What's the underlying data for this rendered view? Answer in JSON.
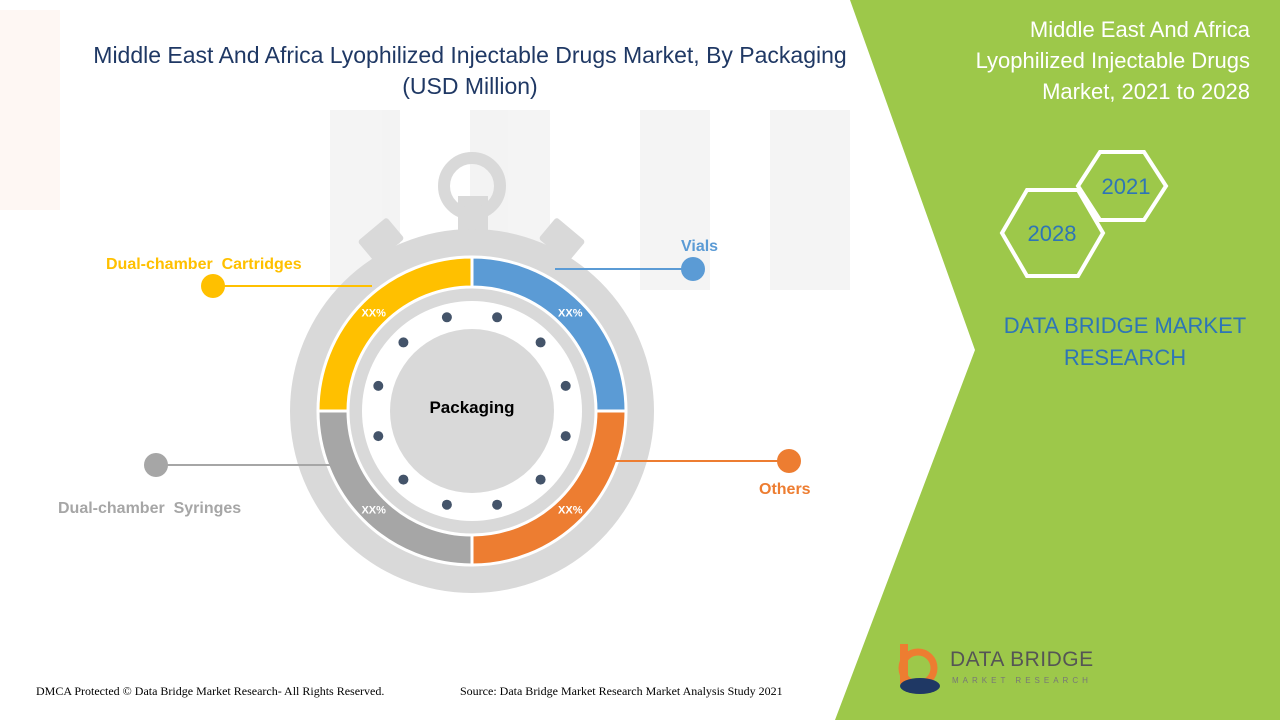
{
  "title_line1": "Middle East And Africa Lyophilized Injectable Drugs Market, By Packaging",
  "title_line2": "(USD Million)",
  "side_panel": {
    "title_line1": "Middle East And Africa",
    "title_line2": "Lyophilized Injectable Drugs",
    "title_line3": "Market, 2021 to 2028",
    "year_start": "2021",
    "year_end": "2028",
    "brand_line1": "DATA BRIDGE MARKET",
    "brand_line2": "RESEARCH"
  },
  "footer": {
    "copyright": "DMCA Protected © Data Bridge Market Research- All Rights Reserved.",
    "source": "Source: Data Bridge Market Research Market Analysis Study 2021"
  },
  "logo": {
    "name": "DATA BRIDGE",
    "tagline": "MARKET RESEARCH"
  },
  "colors": {
    "panel_green": "#9dc84a",
    "title_blue": "#1f3864",
    "vials": "#5b9bd5",
    "others": "#ed7d31",
    "syringes": "#a6a6a6",
    "cartridges": "#ffc000"
  },
  "chart_data": {
    "type": "pie",
    "style": "donut-stopwatch",
    "center_label": "Packaging",
    "segments": [
      {
        "name": "Vials",
        "value": 25,
        "label": "XX%",
        "color": "#5b9bd5"
      },
      {
        "name": "Others",
        "value": 25,
        "label": "XX%",
        "color": "#ed7d31"
      },
      {
        "name": "Dual-chamber  Syringes",
        "value": 25,
        "label": "XX%",
        "color": "#a6a6a6"
      },
      {
        "name": "Dual-chamber  Cartridges",
        "value": 25,
        "label": "XX%",
        "color": "#ffc000"
      }
    ]
  }
}
